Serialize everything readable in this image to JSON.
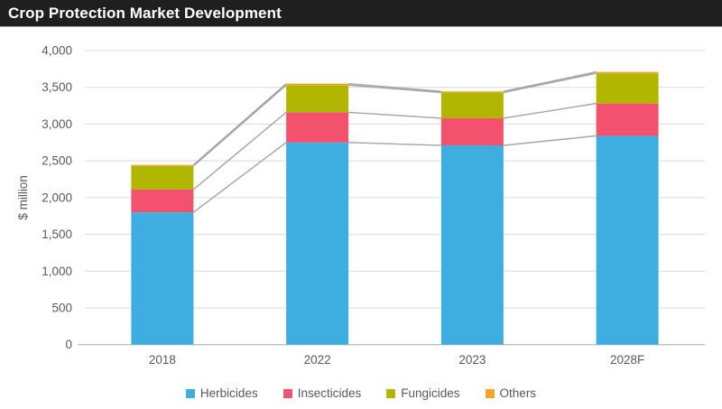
{
  "header": {
    "title": "Crop Protection Market Development"
  },
  "colors": {
    "title_bar_bg": "#1f1f1f",
    "title_text": "#ffffff",
    "axis_text": "#595959",
    "gridline": "#d9d9d9",
    "axis_line": "#bfbfbf",
    "series_line": "#a3a3a3",
    "background": "#ffffff"
  },
  "chart_data": {
    "type": "bar",
    "stacked": true,
    "title": "Crop Protection Market Development",
    "xlabel": "",
    "ylabel": "$ million",
    "categories": [
      "2018",
      "2022",
      "2023",
      "2028F"
    ],
    "series": [
      {
        "name": "Herbicides",
        "color": "#3eaee0",
        "values": [
          1800,
          2750,
          2710,
          2840
        ]
      },
      {
        "name": "Insecticides",
        "color": "#f4516f",
        "values": [
          310,
          410,
          370,
          440
        ]
      },
      {
        "name": "Fungicides",
        "color": "#b1b700",
        "values": [
          320,
          370,
          350,
          410
        ]
      },
      {
        "name": "Others",
        "color": "#f0a62c",
        "values": [
          15,
          20,
          15,
          20
        ]
      }
    ],
    "totals": [
      2445,
      3550,
      3445,
      3710
    ],
    "ylim": [
      0,
      4000
    ],
    "ytick_interval": 500,
    "ytick_labels": [
      "0",
      "500",
      "1,000",
      "1,500",
      "2,000",
      "2,500",
      "3,000",
      "3,500",
      "4,000"
    ],
    "grid": true,
    "series_lines": true,
    "legend_position": "bottom"
  }
}
